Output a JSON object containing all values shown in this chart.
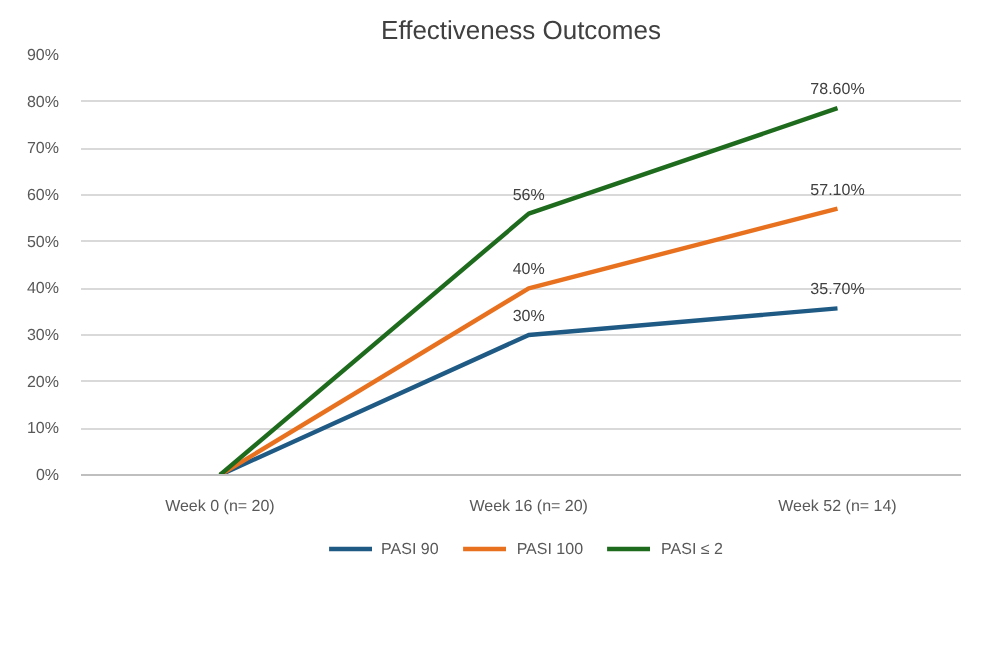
{
  "chart_data": {
    "type": "line",
    "title": "Effectiveness Outcomes",
    "categories": [
      "Week 0 (n= 20)",
      "Week 16 (n= 20)",
      "Week 52 (n= 14)"
    ],
    "series": [
      {
        "name": "PASI 90",
        "color": "#1f5a85",
        "values": [
          0,
          30,
          35.7
        ],
        "value_labels": [
          null,
          "30%",
          "35.70%"
        ]
      },
      {
        "name": "PASI 100",
        "color": "#e8711f",
        "values": [
          0,
          40,
          57.1
        ],
        "value_labels": [
          null,
          "40%",
          "57.10%"
        ]
      },
      {
        "name": "PASI ≤ 2",
        "color": "#1e6b1e",
        "values": [
          0,
          56,
          78.6
        ],
        "value_labels": [
          null,
          "56%",
          "78.60%"
        ]
      }
    ],
    "ylim": [
      0,
      90
    ],
    "yticks": [
      {
        "value": 0,
        "label": "0%"
      },
      {
        "value": 10,
        "label": "10%"
      },
      {
        "value": 20,
        "label": "20%"
      },
      {
        "value": 30,
        "label": "30%"
      },
      {
        "value": 40,
        "label": "40%"
      },
      {
        "value": 50,
        "label": "50%"
      },
      {
        "value": 60,
        "label": "60%"
      },
      {
        "value": 70,
        "label": "70%"
      },
      {
        "value": 80,
        "label": "80%"
      },
      {
        "value": 90,
        "label": "90%"
      }
    ],
    "grid": "y",
    "legend": "bottom"
  }
}
